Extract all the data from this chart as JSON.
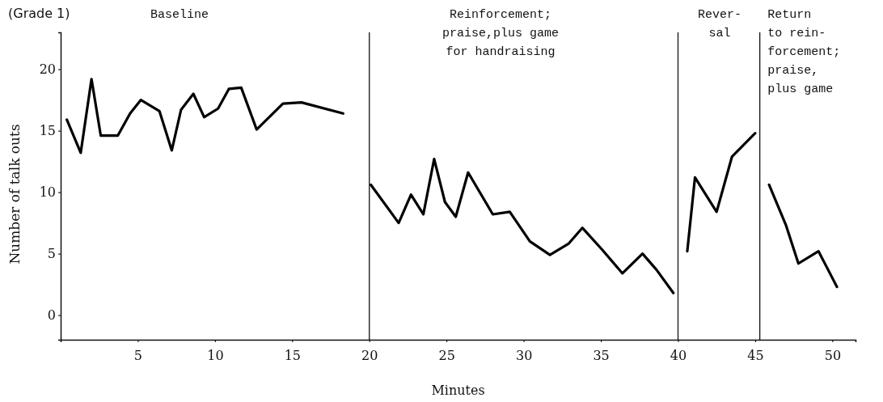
{
  "chart_data": {
    "type": "line",
    "title": "(Grade 1)",
    "xlabel": "Minutes",
    "ylabel": "Number of talk outs",
    "annotations": [
      "Baseline",
      "Reinforcement;\npraise,plus game\nfor handraising",
      "Rever-\nsal",
      "Return\nto rein-\nforcement;\npraise,\nplus game"
    ],
    "xlim": [
      0,
      51.5
    ],
    "xticks": [
      5,
      10,
      15,
      20,
      25,
      30,
      35,
      40,
      45,
      50
    ],
    "ylim": [
      -2,
      23
    ],
    "yticks": [
      0,
      5,
      10,
      15,
      20
    ],
    "series": [
      {
        "color": "#000000",
        "x": [
          0.4,
          1.3,
          2.0,
          2.6,
          3.7,
          4.5,
          5.2,
          6.4,
          7.2,
          7.8,
          8.6,
          9.3,
          10.2,
          10.9,
          11.7,
          12.7,
          14.4,
          15.6,
          18.3
        ],
        "values": [
          15.9,
          13.2,
          19.2,
          14.6,
          14.6,
          16.4,
          17.5,
          16.6,
          13.4,
          16.7,
          18.0,
          16.1,
          16.8,
          18.4,
          18.5,
          15.1,
          17.2,
          17.3,
          16.4
        ]
      },
      {
        "color": "#000000",
        "x": [
          20.1,
          21.9,
          22.7,
          23.5,
          24.2,
          24.9,
          25.6,
          26.4,
          28.0,
          29.1,
          30.4,
          31.7,
          32.9,
          33.8,
          35.1,
          36.4,
          37.7,
          38.6,
          39.7
        ],
        "values": [
          10.6,
          7.5,
          9.8,
          8.2,
          12.7,
          9.2,
          8.0,
          11.6,
          8.2,
          8.4,
          6.0,
          4.9,
          5.8,
          7.1,
          5.3,
          3.4,
          5.0,
          3.7,
          1.8
        ]
      },
      {
        "color": "#000000",
        "x": [
          40.6,
          41.1,
          42.5,
          43.5,
          45.0
        ],
        "values": [
          5.2,
          11.2,
          8.4,
          12.9,
          14.8
        ]
      },
      {
        "color": "#000000",
        "x": [
          45.9,
          47.0,
          47.8,
          49.1,
          50.3
        ],
        "values": [
          10.6,
          7.3,
          4.2,
          5.2,
          2.3
        ]
      }
    ],
    "ref_lines": [
      {
        "axis": "x",
        "value": 20
      },
      {
        "axis": "x",
        "value": 40
      },
      {
        "axis": "x",
        "value": 45.3
      }
    ],
    "grid": false,
    "marker": "none",
    "line_style": "solid"
  }
}
